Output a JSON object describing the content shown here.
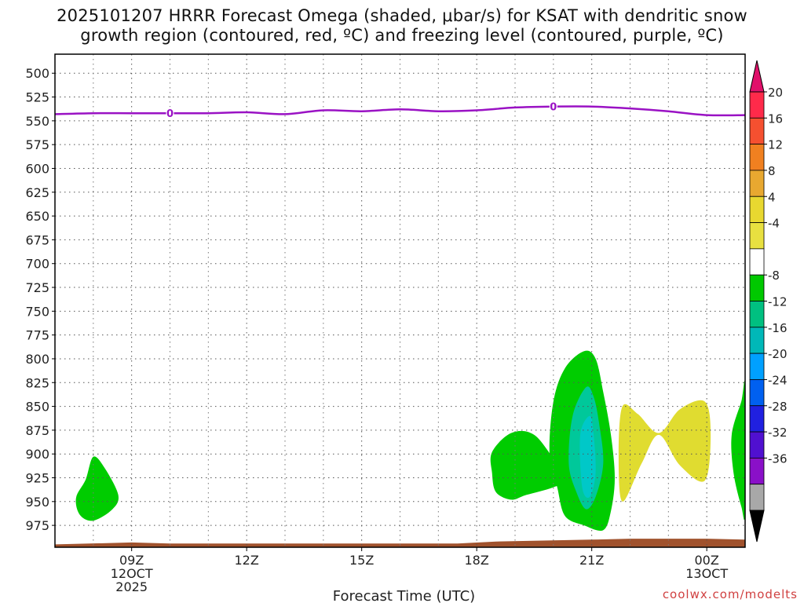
{
  "title": {
    "line1": "2025101207 HRRR Forecast Omega (shaded, μbar/s) for KSAT with dendritic snow",
    "line2": "growth region (contoured, red, ºC) and freezing level (contoured, purple, ºC)"
  },
  "watermark": "coolwx.com/modelts",
  "colors": {
    "freezing_level": "#9a12c4",
    "ground": "#a0522d",
    "green": "#00cc00",
    "teal": "#00c89a",
    "cyan": "#00c8c8",
    "yellow": "#e0dc30"
  },
  "chart_data": {
    "type": "heatmap",
    "xlabel": "Forecast Time (UTC)",
    "x_ticks": [
      {
        "hour": 9,
        "label": "09Z",
        "sub1": "12OCT",
        "sub2": "2025"
      },
      {
        "hour": 12,
        "label": "12Z",
        "sub1": "",
        "sub2": ""
      },
      {
        "hour": 15,
        "label": "15Z",
        "sub1": "",
        "sub2": ""
      },
      {
        "hour": 18,
        "label": "18Z",
        "sub1": "",
        "sub2": ""
      },
      {
        "hour": 21,
        "label": "21Z",
        "sub1": "",
        "sub2": ""
      },
      {
        "hour": 24,
        "label": "00Z",
        "sub1": "13OCT",
        "sub2": ""
      }
    ],
    "x_range": [
      7.0,
      25.0
    ],
    "y_axis": "pressure (hPa)",
    "y_ticks": [
      500,
      525,
      550,
      575,
      600,
      625,
      650,
      675,
      700,
      725,
      750,
      775,
      800,
      825,
      850,
      875,
      900,
      925,
      950,
      975
    ],
    "y_range": [
      480,
      998
    ],
    "grid": true,
    "colorbar": {
      "labels": [
        "20",
        "16",
        "12",
        "8",
        "4",
        "-4",
        "-8",
        "-12",
        "-16",
        "-20",
        "-24",
        "-28",
        "-32",
        "-36"
      ],
      "segments": [
        "#ff2a4a",
        "#f55030",
        "#f08020",
        "#e8a830",
        "#e8d830",
        "#e8e040",
        "#ffffff",
        "#00c800",
        "#00c080",
        "#00b8b8",
        "#00a0ff",
        "#0060f0",
        "#2020e0",
        "#5010d0",
        "#8a10c8",
        "#a8a8a8"
      ],
      "top_arrow": "#e0106a",
      "bottom_arrow": "#000000"
    },
    "freezing_level": {
      "label": "0",
      "points": [
        [
          7.0,
          543
        ],
        [
          8.0,
          542
        ],
        [
          9.0,
          542
        ],
        [
          10.0,
          542
        ],
        [
          11.0,
          542
        ],
        [
          12.0,
          541
        ],
        [
          13.0,
          543
        ],
        [
          14.0,
          539
        ],
        [
          15.0,
          540
        ],
        [
          16.0,
          538
        ],
        [
          17.0,
          540
        ],
        [
          18.0,
          539
        ],
        [
          19.0,
          536
        ],
        [
          20.0,
          535
        ],
        [
          21.0,
          535
        ],
        [
          22.0,
          537
        ],
        [
          23.0,
          540
        ],
        [
          24.0,
          544
        ],
        [
          25.0,
          544
        ]
      ],
      "label_positions": [
        [
          10.0,
          542
        ],
        [
          20.0,
          535
        ]
      ]
    },
    "ground_level": [
      [
        7.0,
        995
      ],
      [
        9.0,
        993
      ],
      [
        10.0,
        994
      ],
      [
        15.0,
        994
      ],
      [
        17.5,
        994
      ],
      [
        18.5,
        992
      ],
      [
        21.0,
        990
      ],
      [
        22.0,
        989
      ],
      [
        24.0,
        989
      ],
      [
        25.0,
        990
      ]
    ],
    "omega_regions": [
      {
        "value_range": "-8 to -4",
        "fill": "green",
        "points": [
          [
            7.8,
            927
          ],
          [
            8.0,
            903
          ],
          [
            8.3,
            915
          ],
          [
            8.65,
            943
          ],
          [
            8.5,
            958
          ],
          [
            8.0,
            970
          ],
          [
            7.65,
            964
          ],
          [
            7.55,
            946
          ]
        ]
      },
      {
        "value_range": "-8 to -4",
        "fill": "green",
        "points": [
          [
            18.4,
            898
          ],
          [
            18.9,
            878
          ],
          [
            19.5,
            880
          ],
          [
            20.1,
            910
          ],
          [
            20.5,
            925
          ],
          [
            20.0,
            935
          ],
          [
            19.3,
            943
          ],
          [
            18.9,
            948
          ],
          [
            18.5,
            940
          ],
          [
            18.4,
            920
          ]
        ]
      },
      {
        "value_range": "-8 to -4",
        "fill": "green",
        "points": [
          [
            20.0,
            845
          ],
          [
            20.3,
            810
          ],
          [
            20.8,
            792
          ],
          [
            21.1,
            800
          ],
          [
            21.3,
            835
          ],
          [
            21.5,
            880
          ],
          [
            21.6,
            925
          ],
          [
            21.5,
            960
          ],
          [
            21.3,
            980
          ],
          [
            20.8,
            975
          ],
          [
            20.3,
            965
          ],
          [
            20.1,
            935
          ],
          [
            19.9,
            900
          ]
        ]
      },
      {
        "value_range": "-12 to -8",
        "fill": "teal",
        "points": [
          [
            20.5,
            860
          ],
          [
            20.85,
            830
          ],
          [
            21.05,
            840
          ],
          [
            21.2,
            870
          ],
          [
            21.3,
            910
          ],
          [
            21.1,
            945
          ],
          [
            20.85,
            958
          ],
          [
            20.6,
            940
          ],
          [
            20.4,
            910
          ]
        ]
      },
      {
        "value_range": "-16 to -12",
        "fill": "cyan",
        "points": [
          [
            20.7,
            880
          ],
          [
            20.95,
            860
          ],
          [
            21.05,
            880
          ],
          [
            21.1,
            920
          ],
          [
            20.95,
            945
          ],
          [
            20.75,
            935
          ]
        ]
      },
      {
        "value_range": "4 to 8",
        "fill": "yellow",
        "points": [
          [
            21.8,
            850
          ],
          [
            22.2,
            858
          ],
          [
            22.75,
            878
          ],
          [
            23.3,
            853
          ],
          [
            23.95,
            845
          ],
          [
            24.1,
            880
          ],
          [
            23.95,
            928
          ],
          [
            23.3,
            912
          ],
          [
            22.75,
            880
          ],
          [
            22.3,
            910
          ],
          [
            21.8,
            950
          ],
          [
            21.7,
            900
          ]
        ]
      },
      {
        "value_range": "-8 to -4",
        "fill": "green",
        "points": [
          [
            24.9,
            845
          ],
          [
            25.0,
            830
          ],
          [
            25.0,
            960
          ],
          [
            24.9,
            955
          ],
          [
            24.7,
            920
          ],
          [
            24.65,
            880
          ]
        ]
      }
    ]
  }
}
